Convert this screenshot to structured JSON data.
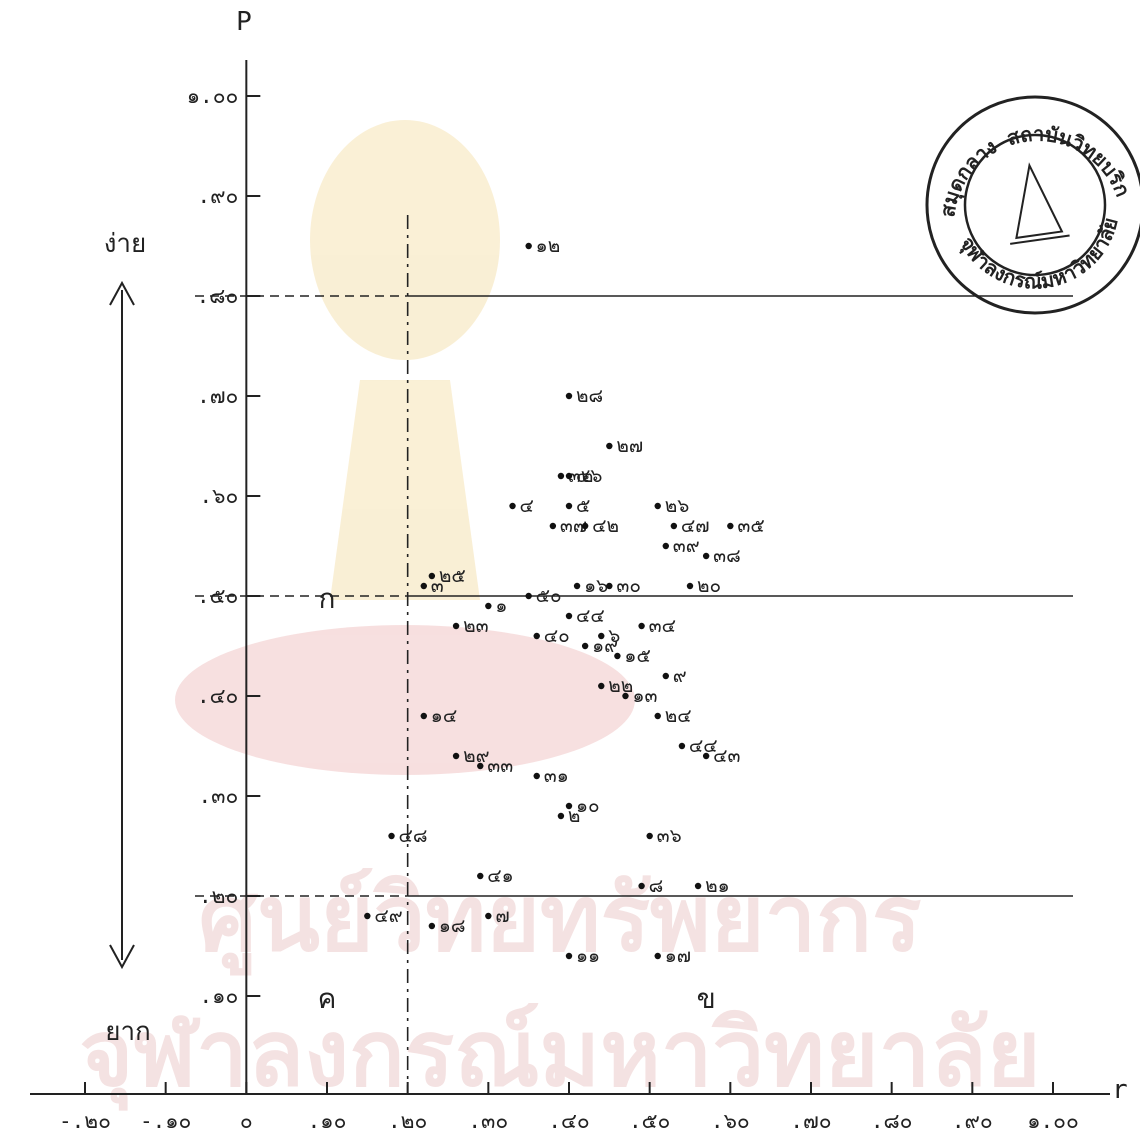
{
  "chart_data": {
    "type": "scatter",
    "title": "",
    "xlabel": "r",
    "ylabel": "P",
    "xlim": [
      -0.2,
      1.0
    ],
    "ylim": [
      0.0,
      1.0
    ],
    "x_ticks": [
      {
        "v": -0.2,
        "label": "-.๒๐"
      },
      {
        "v": -0.1,
        "label": "-.๑๐"
      },
      {
        "v": 0.0,
        "label": "๐"
      },
      {
        "v": 0.1,
        "label": ".๑๐"
      },
      {
        "v": 0.2,
        "label": ".๒๐"
      },
      {
        "v": 0.3,
        "label": ".๓๐"
      },
      {
        "v": 0.4,
        "label": ".๔๐"
      },
      {
        "v": 0.5,
        "label": ".๕๐"
      },
      {
        "v": 0.6,
        "label": ".๖๐"
      },
      {
        "v": 0.7,
        "label": ".๗๐"
      },
      {
        "v": 0.8,
        "label": ".๘๐"
      },
      {
        "v": 0.9,
        "label": ".๙๐"
      },
      {
        "v": 1.0,
        "label": "๑.๐๐"
      }
    ],
    "y_ticks": [
      {
        "v": 0.1,
        "label": ".๑๐"
      },
      {
        "v": 0.2,
        "label": ".๒๐"
      },
      {
        "v": 0.3,
        "label": ".๓๐"
      },
      {
        "v": 0.4,
        "label": ".๔๐"
      },
      {
        "v": 0.5,
        "label": ".๕๐"
      },
      {
        "v": 0.6,
        "label": ".๖๐"
      },
      {
        "v": 0.7,
        "label": ".๗๐"
      },
      {
        "v": 0.8,
        "label": ".๘๐"
      },
      {
        "v": 0.9,
        "label": ".๙๐"
      },
      {
        "v": 1.0,
        "label": "๑.๐๐"
      }
    ],
    "easy_label": "ง่าย",
    "hard_label": "ยาก",
    "region_labels": [
      {
        "text": "ก",
        "x": 0.1,
        "y": 0.5
      },
      {
        "text": "ค",
        "x": 0.1,
        "y": 0.1
      },
      {
        "text": "ข",
        "x": 0.57,
        "y": 0.1
      }
    ],
    "ref_lines": {
      "vertical_r": 0.2,
      "horizontal_p": [
        0.8,
        0.5,
        0.2
      ]
    },
    "points": [
      {
        "label": "๑๒",
        "x": 0.35,
        "y": 0.85
      },
      {
        "label": "๒๘",
        "x": 0.4,
        "y": 0.7
      },
      {
        "label": "๒๗",
        "x": 0.45,
        "y": 0.65
      },
      {
        "label": "๓๒",
        "x": 0.39,
        "y": 0.62
      },
      {
        "label": "๔๖",
        "x": 0.4,
        "y": 0.62
      },
      {
        "label": "๔",
        "x": 0.33,
        "y": 0.59
      },
      {
        "label": "๕",
        "x": 0.4,
        "y": 0.59
      },
      {
        "label": "๓๗",
        "x": 0.38,
        "y": 0.57
      },
      {
        "label": "๔๒",
        "x": 0.42,
        "y": 0.57
      },
      {
        "label": "๒๖",
        "x": 0.51,
        "y": 0.59
      },
      {
        "label": "๔๗",
        "x": 0.53,
        "y": 0.57
      },
      {
        "label": "๓๕",
        "x": 0.6,
        "y": 0.57
      },
      {
        "label": "๓๙",
        "x": 0.52,
        "y": 0.55
      },
      {
        "label": "๓๘",
        "x": 0.57,
        "y": 0.54
      },
      {
        "label": "๒๕",
        "x": 0.23,
        "y": 0.52
      },
      {
        "label": "๓",
        "x": 0.22,
        "y": 0.51
      },
      {
        "label": "๕๐",
        "x": 0.35,
        "y": 0.5
      },
      {
        "label": "๑",
        "x": 0.3,
        "y": 0.49
      },
      {
        "label": "๑๖",
        "x": 0.41,
        "y": 0.51
      },
      {
        "label": "๓๐",
        "x": 0.45,
        "y": 0.51
      },
      {
        "label": "๒๐",
        "x": 0.55,
        "y": 0.51
      },
      {
        "label": "๔๔",
        "x": 0.4,
        "y": 0.48
      },
      {
        "label": "๓๔",
        "x": 0.49,
        "y": 0.47
      },
      {
        "label": "๒๓",
        "x": 0.26,
        "y": 0.47
      },
      {
        "label": "๔๐",
        "x": 0.36,
        "y": 0.46
      },
      {
        "label": "๑๙",
        "x": 0.42,
        "y": 0.45
      },
      {
        "label": "๖",
        "x": 0.44,
        "y": 0.46
      },
      {
        "label": "๑๕",
        "x": 0.46,
        "y": 0.44
      },
      {
        "label": "๙",
        "x": 0.52,
        "y": 0.42
      },
      {
        "label": "๒๒",
        "x": 0.44,
        "y": 0.41
      },
      {
        "label": "๑๓",
        "x": 0.47,
        "y": 0.4
      },
      {
        "label": "๒๔",
        "x": 0.51,
        "y": 0.38
      },
      {
        "label": "๑๔",
        "x": 0.22,
        "y": 0.38
      },
      {
        "label": "๔๔",
        "x": 0.54,
        "y": 0.35
      },
      {
        "label": "๔๓",
        "x": 0.57,
        "y": 0.34
      },
      {
        "label": "๒๙",
        "x": 0.26,
        "y": 0.34
      },
      {
        "label": "๓๓",
        "x": 0.29,
        "y": 0.33
      },
      {
        "label": "๓๑",
        "x": 0.36,
        "y": 0.32
      },
      {
        "label": "๑๐",
        "x": 0.4,
        "y": 0.29
      },
      {
        "label": "๒",
        "x": 0.39,
        "y": 0.28
      },
      {
        "label": "๓๖",
        "x": 0.5,
        "y": 0.26
      },
      {
        "label": "๔๘",
        "x": 0.18,
        "y": 0.26
      },
      {
        "label": "๔๑",
        "x": 0.29,
        "y": 0.22
      },
      {
        "label": "๘",
        "x": 0.49,
        "y": 0.21
      },
      {
        "label": "๒๑",
        "x": 0.56,
        "y": 0.21
      },
      {
        "label": "๔๙",
        "x": 0.15,
        "y": 0.18
      },
      {
        "label": "๑๘",
        "x": 0.23,
        "y": 0.17
      },
      {
        "label": "๗",
        "x": 0.3,
        "y": 0.18
      },
      {
        "label": "๑๑",
        "x": 0.4,
        "y": 0.14
      },
      {
        "label": "๑๗",
        "x": 0.51,
        "y": 0.14
      }
    ]
  },
  "stamp": {
    "top_text": "หอสมุดกลาง สถาบันวิทยบริการ",
    "bottom_text": "จุฬาลงกรณ์มหาวิทยาลัย"
  },
  "watermark": {
    "line1": "ศูนย์วิทยทรัพยากร",
    "line2": "จุฬาลงกรณ์มหาวิทยาลัย"
  }
}
